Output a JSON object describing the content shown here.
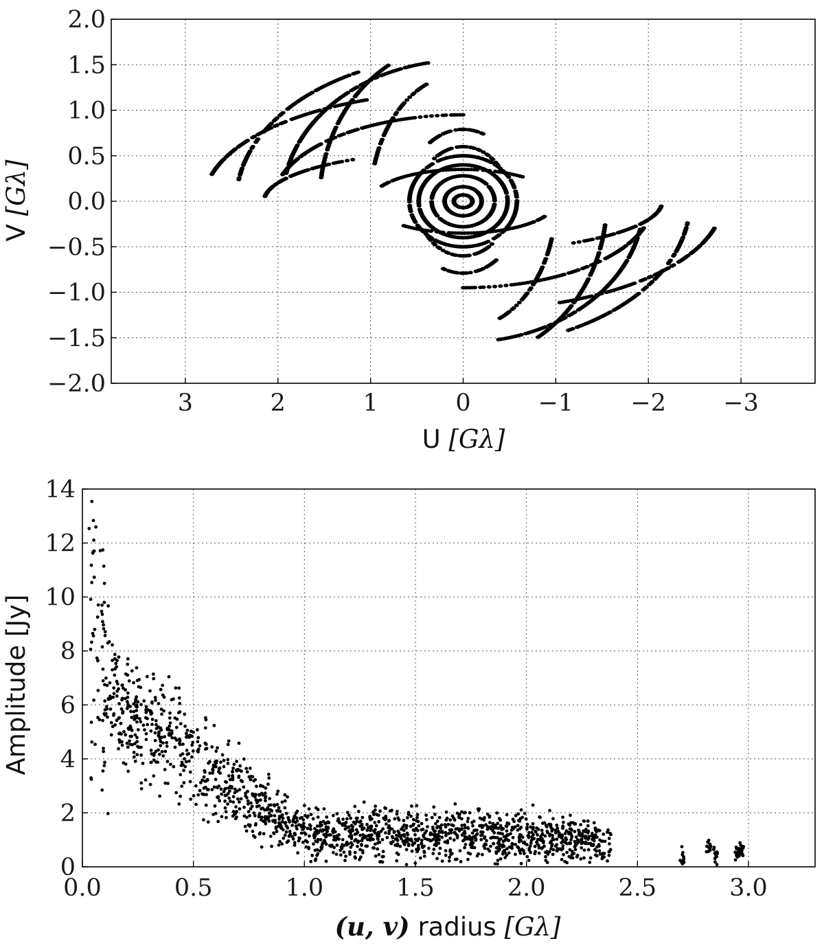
{
  "colors": {
    "marker": "#000000",
    "grid": "#555555",
    "frame": "#000000",
    "background": "#ffffff"
  },
  "chart_data": [
    {
      "type": "scatter",
      "title": "",
      "xlabel": {
        "text": "U",
        "unit": "[Gλ]"
      },
      "ylabel": {
        "text": "V",
        "unit": "[Gλ]"
      },
      "xlim": [
        3.8,
        -3.8
      ],
      "x_inverted": true,
      "ylim": [
        -2.0,
        2.0
      ],
      "xticks": [
        3,
        2,
        1,
        0,
        -1,
        -2,
        -3
      ],
      "xtick_labels": [
        "3",
        "2",
        "1",
        "0",
        "−1",
        "−2",
        "−3"
      ],
      "yticks": [
        -2.0,
        -1.5,
        -1.0,
        -0.5,
        0.0,
        0.5,
        1.0,
        1.5,
        2.0
      ],
      "ytick_labels": [
        "−2.0",
        "−1.5",
        "−1.0",
        "−0.5",
        "0.0",
        "0.5",
        "1.0",
        "1.5",
        "2.0"
      ],
      "grid": true,
      "legend": "none",
      "description_of_points": "uv-coverage: point-symmetric elliptical arc tracks",
      "arcs": [
        {
          "rx": 0.1,
          "ry": 0.07,
          "t0": 0.0,
          "t1": 6.28
        },
        {
          "rx": 0.2,
          "ry": 0.16,
          "t0": 0.0,
          "t1": 6.28
        },
        {
          "rx": 0.34,
          "ry": 0.28,
          "t0": 0.2,
          "t1": 5.6
        },
        {
          "rx": 0.48,
          "ry": 0.4,
          "t0": 0.6,
          "t1": 5.9
        },
        {
          "rx": 0.58,
          "ry": 0.5,
          "t0": 1.4,
          "t1": 5.2
        },
        {
          "rx": 0.5,
          "ry": 0.6,
          "t0": 0.9,
          "t1": 2.6
        },
        {
          "rx": 0.62,
          "ry": 0.79,
          "t0": 4.1,
          "t1": 5.1
        },
        {
          "rx": 1.0,
          "ry": 0.35,
          "t0": 0.5,
          "t1": 2.3
        },
        {
          "rx": 1.0,
          "ry": 1.4,
          "t0": 0.3,
          "t1": 1.2
        },
        {
          "rx": 1.55,
          "ry": 1.75,
          "t0": 0.15,
          "t1": 1.05
        },
        {
          "rx": 1.95,
          "ry": 1.55,
          "t0": 0.2,
          "t1": 1.4
        },
        {
          "rx": 2.05,
          "ry": 0.95,
          "t0": 0.3,
          "t1": 1.6
        },
        {
          "rx": 2.45,
          "ry": 1.6,
          "t0": 0.15,
          "t1": 1.1
        },
        {
          "rx": 2.8,
          "ry": 1.2,
          "t0": 0.25,
          "t1": 1.2
        },
        {
          "rx": 2.15,
          "ry": 0.55,
          "t0": 0.1,
          "t1": 1.0
        }
      ]
    },
    {
      "type": "scatter",
      "title": "",
      "xlabel": {
        "math": "(u, v)",
        "text": "radius",
        "unit": "[Gλ]"
      },
      "ylabel": {
        "text": "Amplitude [Jy]"
      },
      "xlim": [
        0.0,
        3.3
      ],
      "ylim": [
        0,
        14
      ],
      "xticks": [
        0.0,
        0.5,
        1.0,
        1.5,
        2.0,
        2.5,
        3.0
      ],
      "xtick_labels": [
        "0.0",
        "0.5",
        "1.0",
        "1.5",
        "2.0",
        "2.5",
        "3.0"
      ],
      "yticks": [
        0,
        2,
        4,
        6,
        8,
        10,
        12,
        14
      ],
      "ytick_labels": [
        "0",
        "2",
        "4",
        "6",
        "8",
        "10",
        "12",
        "14"
      ],
      "grid": true,
      "legend": "none",
      "trend": [
        {
          "x": 0.03,
          "y": 12.5
        },
        {
          "x": 0.06,
          "y": 10.5
        },
        {
          "x": 0.1,
          "y": 8.0
        },
        {
          "x": 0.15,
          "y": 6.3
        },
        {
          "x": 0.25,
          "y": 5.3
        },
        {
          "x": 0.4,
          "y": 4.6
        },
        {
          "x": 0.55,
          "y": 3.7
        },
        {
          "x": 0.7,
          "y": 2.8
        },
        {
          "x": 0.85,
          "y": 1.9
        },
        {
          "x": 1.0,
          "y": 1.3
        },
        {
          "x": 1.4,
          "y": 1.2
        },
        {
          "x": 1.8,
          "y": 1.2
        },
        {
          "x": 2.2,
          "y": 1.0
        },
        {
          "x": 2.38,
          "y": 0.8
        }
      ],
      "clusters": [
        {
          "x": 2.7,
          "y": 0.3
        },
        {
          "x": 2.82,
          "y": 0.8
        },
        {
          "x": 2.85,
          "y": 0.4
        },
        {
          "x": 2.95,
          "y": 0.5
        },
        {
          "x": 2.97,
          "y": 0.6
        }
      ]
    }
  ]
}
